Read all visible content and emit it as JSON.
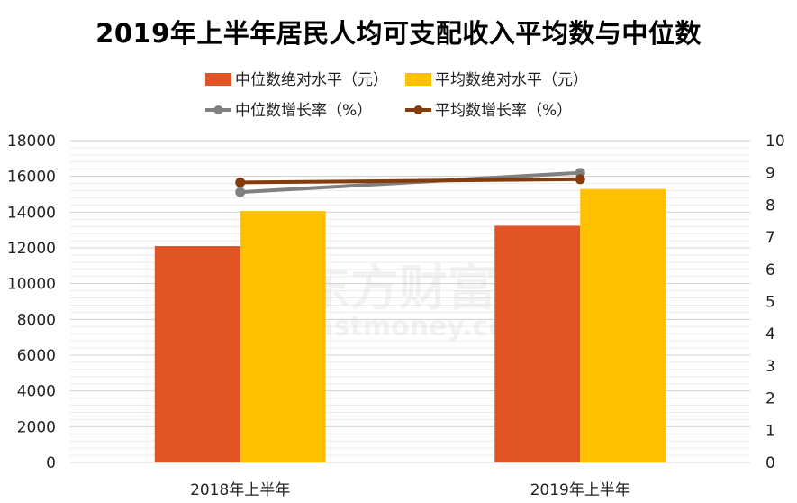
{
  "chart_data": {
    "type": "bar",
    "title": "2019年上半年居民人均可支配收入平均数与中位数",
    "categories": [
      "2018年上半年",
      "2019年上半年"
    ],
    "series": [
      {
        "name": "中位数绝对水平（元）",
        "kind": "bar",
        "axis": "left",
        "color": "#E05426",
        "values": [
          12099,
          13239
        ]
      },
      {
        "name": "平均数绝对水平（元）",
        "kind": "bar",
        "axis": "left",
        "color": "#FFC000",
        "values": [
          14063,
          15294
        ]
      },
      {
        "name": "中位数增长率（%）",
        "kind": "line",
        "axis": "right",
        "color": "#808080",
        "values": [
          8.4,
          9.0
        ]
      },
      {
        "name": "平均数增长率（%）",
        "kind": "line",
        "axis": "right",
        "color": "#843C0C",
        "values": [
          8.7,
          8.8
        ]
      }
    ],
    "y_left": {
      "min": 0,
      "max": 18000,
      "step": 2000
    },
    "y_right": {
      "min": 0,
      "max": 10,
      "step": 1
    },
    "legend_position": "top",
    "grid": true
  },
  "watermark": {
    "text_cn": "东方财富网",
    "text_en": "eastmoney.com"
  }
}
